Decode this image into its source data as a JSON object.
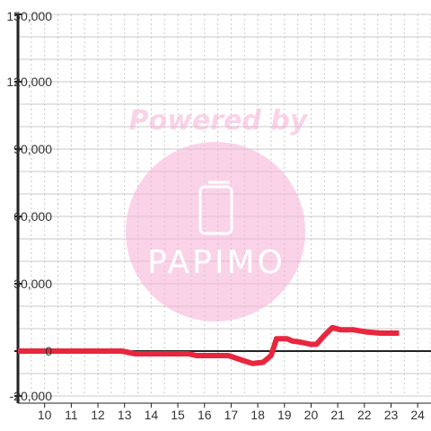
{
  "watermark": {
    "text": "Powered by",
    "logo_text": "PAPIMO",
    "color": "#f7b6d8",
    "logo_color": "#ffffff"
  },
  "colors": {
    "line": "#e8263d",
    "axis": "#222222",
    "grid_h": "#c8c8c8",
    "grid_v": "#c8c8c8"
  },
  "chart_data": {
    "type": "line",
    "title": "",
    "xlabel": "",
    "ylabel": "",
    "xlim": [
      9.0,
      24.5
    ],
    "ylim": [
      -20000,
      150000
    ],
    "x_ticks": [
      10,
      11,
      12,
      13,
      14,
      15,
      16,
      17,
      18,
      19,
      20,
      21,
      22,
      23,
      24
    ],
    "x_tick_labels": [
      "10",
      "11",
      "12",
      "13",
      "14",
      "15",
      "16",
      "17",
      "18",
      "19",
      "20",
      "21",
      "22",
      "23",
      "24"
    ],
    "y_ticks": [
      -20000,
      0,
      30000,
      60000,
      90000,
      120000,
      150000
    ],
    "y_tick_labels": [
      "-20,000",
      "0",
      "30,000",
      "60,000",
      "90,000",
      "120,000",
      "150,000"
    ],
    "grid": true,
    "legend": "none",
    "series": [
      {
        "x": [
          9.0,
          12.9,
          13.4,
          15.4,
          15.7,
          16.9,
          17.4,
          17.8,
          18.2,
          18.5,
          18.7,
          19.1,
          19.3,
          19.6,
          20.0,
          20.2,
          20.5,
          20.8,
          21.1,
          21.6,
          22.1,
          22.6,
          23.3
        ],
        "y": [
          0,
          0,
          -1200,
          -1200,
          -2000,
          -2000,
          -4000,
          -5500,
          -5000,
          -2000,
          5500,
          5500,
          4500,
          4000,
          3000,
          3000,
          7000,
          10500,
          9500,
          9500,
          8500,
          8000,
          8000
        ]
      }
    ]
  }
}
